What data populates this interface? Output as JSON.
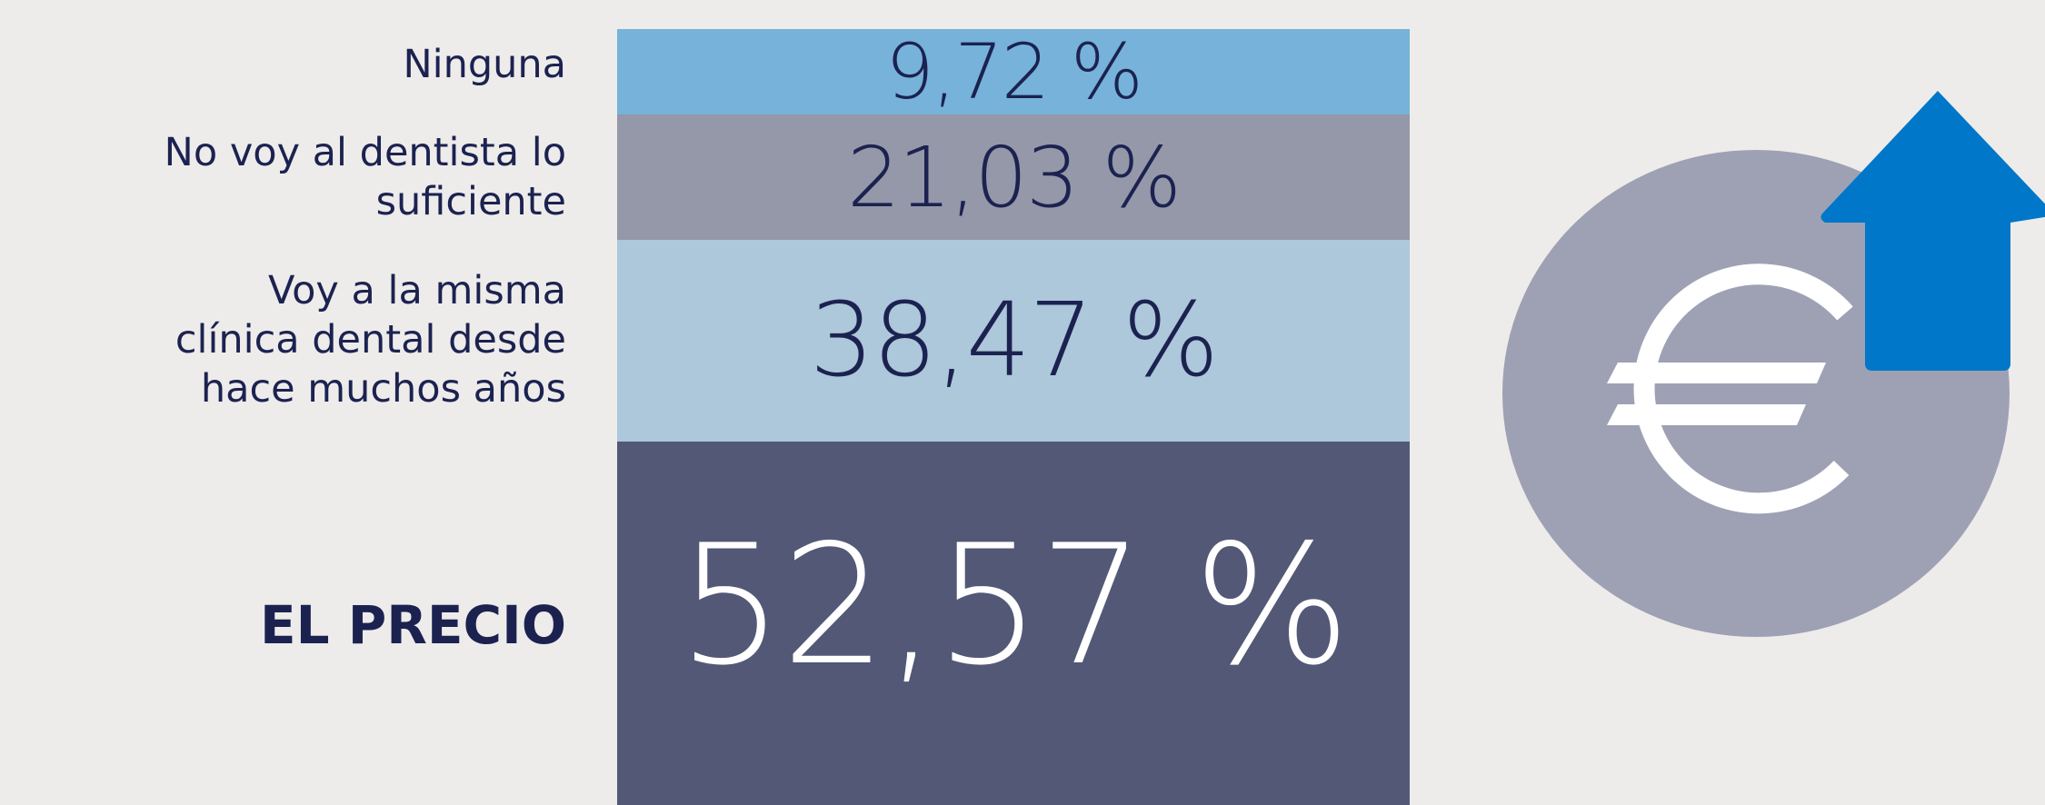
{
  "items": [
    {
      "label": "Ninguna",
      "value": "9,72 %"
    },
    {
      "label": "No voy al dentista lo\nsuficiente",
      "value": "21,03 %"
    },
    {
      "label": "Voy a la misma\nclínica dental desde\nhace muchos años",
      "value": "38,47 %"
    },
    {
      "label": "EL PRECIO",
      "value": "52,57 %"
    }
  ]
}
